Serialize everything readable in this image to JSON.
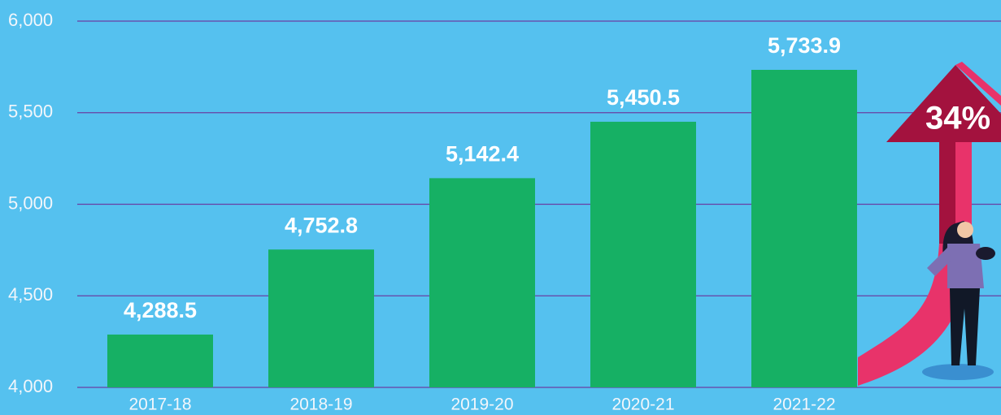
{
  "chart_data": {
    "type": "bar",
    "categories": [
      "2017-18",
      "2018-19",
      "2019-20",
      "2020-21",
      "2021-22"
    ],
    "values": [
      4288.5,
      4752.8,
      5142.4,
      5450.5,
      5733.9
    ],
    "value_labels": [
      "4,288.5",
      "4,752.8",
      "5,142.4",
      "5,450.5",
      "5,733.9"
    ],
    "color": "#16b064",
    "ylim": [
      4000,
      6000
    ],
    "yticks": [
      {
        "value": 4000,
        "label": "4,000"
      },
      {
        "value": 4500,
        "label": "4,500"
      },
      {
        "value": 5000,
        "label": "5,000"
      },
      {
        "value": 5500,
        "label": "5,500"
      },
      {
        "value": 6000,
        "label": "6,000"
      }
    ],
    "grid": true,
    "annotation": "34%"
  }
}
